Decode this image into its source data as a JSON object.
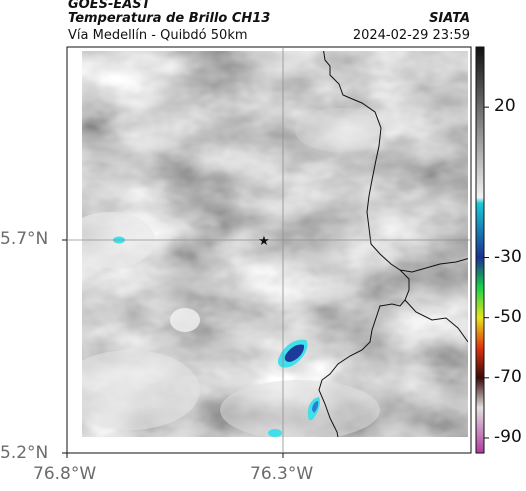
{
  "header": {
    "satellite": "GOES-EAST",
    "product": "Temperatura de Brillo CH13",
    "region": "Vía Medellín - Quibdó 50km",
    "agency": "SIATA",
    "datetime": "2024-02-29 23:59"
  },
  "axes": {
    "y_ticks": [
      {
        "label": "5.7°N",
        "value": 5.7
      },
      {
        "label": "5.2°N",
        "value": 5.2
      }
    ],
    "x_ticks": [
      {
        "label": "76.8°W",
        "value": -76.8
      },
      {
        "label": "76.3°W",
        "value": -76.3
      }
    ],
    "gridlines": true
  },
  "map": {
    "marker": {
      "name": "star",
      "lon": -76.32,
      "lat": 5.7
    },
    "colors": {
      "cloud_cold": "#ffffff",
      "cloud_warm": "#6e6e6e",
      "cold_top_cyan": "#3fe0ea",
      "cold_top_blue": "#1c3c9c",
      "border": "#111111",
      "gridline": "#8f8f8f"
    }
  },
  "colorbar": {
    "ticks": [
      {
        "label": "20",
        "value": 20
      },
      {
        "label": "-30",
        "value": -30
      },
      {
        "label": "-50",
        "value": -50
      },
      {
        "label": "-70",
        "value": -70
      },
      {
        "label": "-90",
        "value": -90
      }
    ],
    "range": [
      -95,
      40
    ],
    "stops": [
      {
        "value": 40,
        "color": "#111111"
      },
      {
        "value": -10,
        "color": "#f2f2f2"
      },
      {
        "value": -12,
        "color": "#19c9d6"
      },
      {
        "value": -30,
        "color": "#1a2f93"
      },
      {
        "value": -40,
        "color": "#1ad14a"
      },
      {
        "value": -50,
        "color": "#e6e619"
      },
      {
        "value": -60,
        "color": "#e0320e"
      },
      {
        "value": -70,
        "color": "#3a0a0a"
      },
      {
        "value": -80,
        "color": "#e0e0e0"
      },
      {
        "value": -95,
        "color": "#b03aa0"
      }
    ]
  }
}
